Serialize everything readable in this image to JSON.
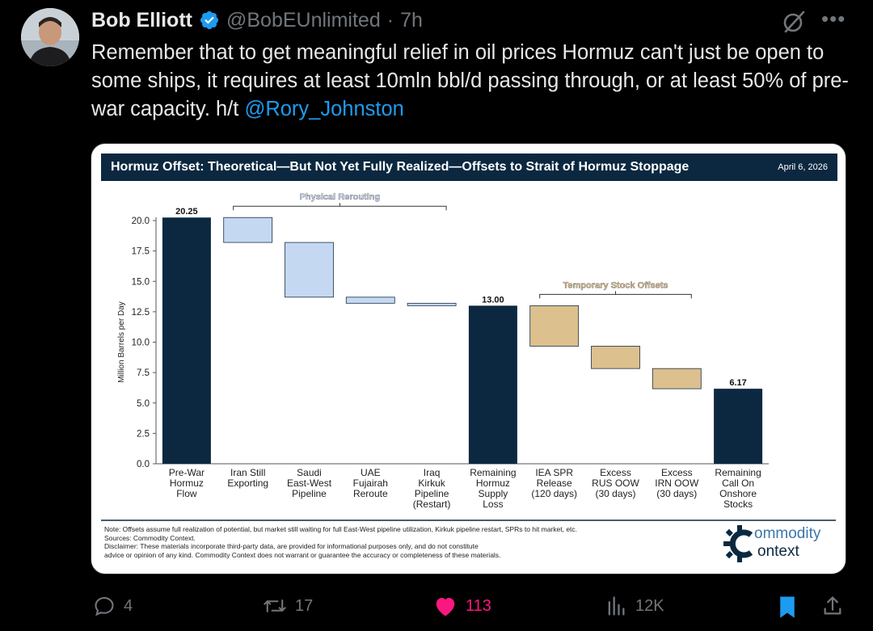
{
  "tweet": {
    "author_name": "Bob Elliott",
    "handle": "@BobEUnlimited",
    "separator": "·",
    "time": "7h",
    "text_main": "Remember that to get meaningful relief in oil prices Hormuz can't just be open to some ships, it requires at least 10mln bbl/d passing through, or at least 50% of pre-war capacity. h/t ",
    "mention": "@Rory_Johnston"
  },
  "chart_data": {
    "type": "bar",
    "subtype": "waterfall",
    "title": "Hormuz Offset: Theoretical—But Not Yet Fully Realized—Offsets to Strait of Hormuz Stoppage",
    "date": "April 6, 2026",
    "ylabel": "Million Barrels per Day",
    "ylim": [
      0,
      20.0
    ],
    "yticks": [
      "0.0",
      "2.5",
      "5.0",
      "7.5",
      "10.0",
      "12.5",
      "15.0",
      "17.5",
      "20.0"
    ],
    "grid": false,
    "categories": [
      [
        "Pre-War",
        "Hormuz",
        "Flow"
      ],
      [
        "Iran Still",
        "Exporting"
      ],
      [
        "Saudi",
        "East-West",
        "Pipeline"
      ],
      [
        "UAE",
        "Fujairah",
        "Reroute"
      ],
      [
        "Iraq",
        "Kirkuk",
        "Pipeline",
        "(Restart)"
      ],
      [
        "Remaining",
        "Hormuz",
        "Supply",
        "Loss"
      ],
      [
        "IEA SPR",
        "Release",
        "(120 days)"
      ],
      [
        "Excess",
        "RUS OOW",
        "(30 days)"
      ],
      [
        "Excess",
        "IRN OOW",
        "(30 days)"
      ],
      [
        "Remaining",
        "Call On",
        "Onshore",
        "Stocks"
      ]
    ],
    "bars": [
      {
        "start": 0,
        "end": 20.25,
        "kind": "total",
        "label": "20.25"
      },
      {
        "start": 18.2,
        "end": 20.25,
        "kind": "rerouting"
      },
      {
        "start": 13.7,
        "end": 18.2,
        "kind": "rerouting"
      },
      {
        "start": 13.2,
        "end": 13.7,
        "kind": "rerouting"
      },
      {
        "start": 13.0,
        "end": 13.2,
        "kind": "rerouting"
      },
      {
        "start": 0,
        "end": 13.0,
        "kind": "total",
        "label": "13.00"
      },
      {
        "start": 9.67,
        "end": 13.0,
        "kind": "stock"
      },
      {
        "start": 7.83,
        "end": 9.67,
        "kind": "stock"
      },
      {
        "start": 6.17,
        "end": 7.83,
        "kind": "stock"
      },
      {
        "start": 0,
        "end": 6.17,
        "kind": "total",
        "label": "6.17"
      }
    ],
    "annotations": [
      {
        "text": "Physical Rerouting",
        "from_bar": 1,
        "to_bar": 4,
        "at": 20.25
      },
      {
        "text": "Temporary Stock Offsets",
        "from_bar": 6,
        "to_bar": 8,
        "at": 13.0
      }
    ],
    "colors": {
      "total": "#0b2840",
      "rerouting": "#c5d8f2",
      "stock": "#dcc08e"
    }
  },
  "chart_notes": {
    "note": "Note: Offsets assume full realization of potential, but market still waiting for full East-West pipeline utilization, Kirkuk pipeline restart, SPRs to hit market, etc.",
    "sources": "Sources: Commodity Context.",
    "disclaimer1": "Disclaimer: These materials incorporate third-party data, are provided for informational purposes only, and do not constitute",
    "disclaimer2": "advice or opinion of any kind. Commodity Context does not warrant or guarantee the accuracy or completeness of these materials.",
    "logo_line1": "ommodity",
    "logo_line2": "ontext"
  },
  "actions": {
    "replies": "4",
    "reposts": "17",
    "likes": "113",
    "views": "12K"
  },
  "icons": {
    "verified": "verified-badge-icon",
    "grok": "grok-icon",
    "more": "more-icon",
    "reply": "reply-icon",
    "repost": "repost-icon",
    "like": "heart-icon",
    "views": "views-icon",
    "bookmark": "bookmark-icon",
    "share": "share-icon"
  },
  "colors": {
    "like": "#f91880",
    "link": "#1d9bf0",
    "bookmark": "#1d9bf0"
  }
}
